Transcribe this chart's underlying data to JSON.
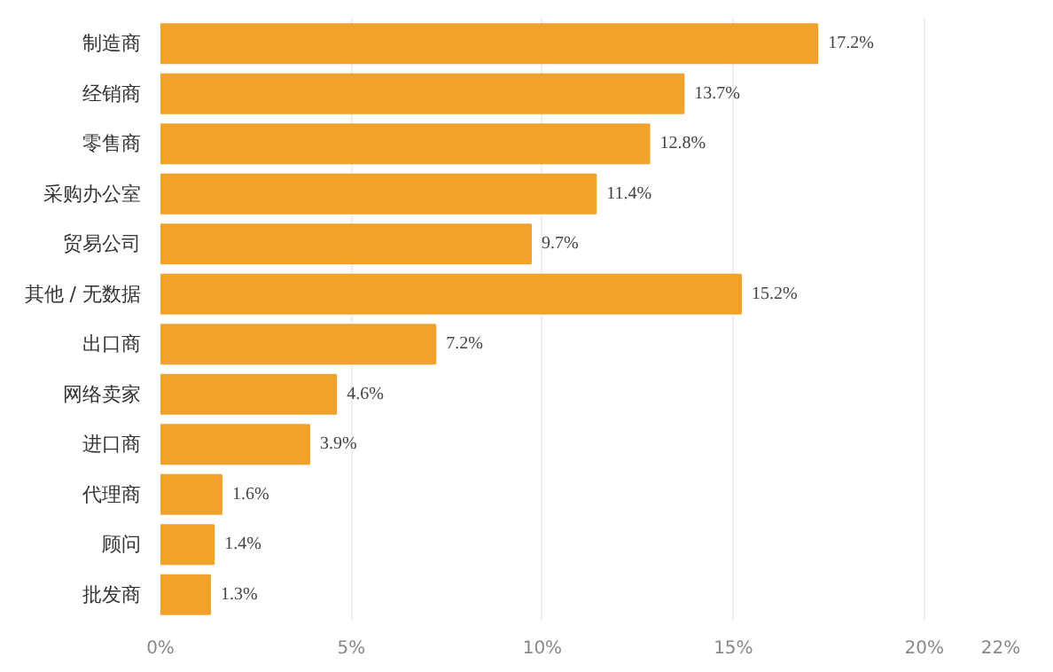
{
  "chart_data": {
    "type": "bar",
    "orientation": "horizontal",
    "categories": [
      "制造商",
      "经销商",
      "零售商",
      "采购办公室",
      "贸易公司",
      "其他 / 无数据",
      "出口商",
      "网络卖家",
      "进口商",
      "代理商",
      "顾问",
      "批发商"
    ],
    "values": [
      17.2,
      13.7,
      12.8,
      11.4,
      9.7,
      15.2,
      7.2,
      4.6,
      3.9,
      1.6,
      1.4,
      1.3
    ],
    "value_labels": [
      "17.2%",
      "13.7%",
      "12.8%",
      "11.4%",
      "9.7%",
      "15.2%",
      "7.2%",
      "4.6%",
      "3.9%",
      "1.6%",
      "1.4%",
      "1.3%"
    ],
    "color": "#f0a22a",
    "xlim": [
      0,
      22
    ],
    "xticks": [
      {
        "value": 0,
        "label": "0%"
      },
      {
        "value": 5,
        "label": "5%"
      },
      {
        "value": 10,
        "label": "10%"
      },
      {
        "value": 15,
        "label": "15%"
      },
      {
        "value": 20,
        "label": "20%"
      },
      {
        "value": 22,
        "label": "22%"
      }
    ],
    "grid": "x"
  }
}
